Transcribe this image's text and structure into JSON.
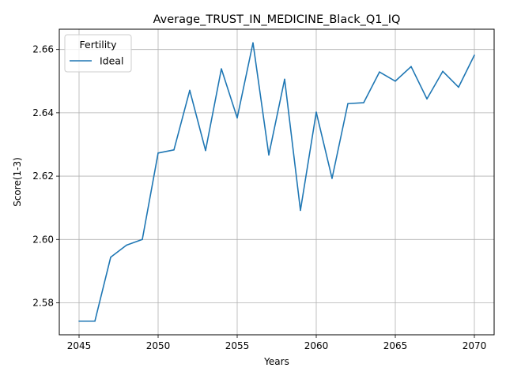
{
  "chart_data": {
    "type": "line",
    "title": "Average_TRUST_IN_MEDICINE_Black_Q1_IQ",
    "xlabel": "Years",
    "ylabel": "Score(1-3)",
    "xlim": [
      2043.75,
      2071.25
    ],
    "ylim": [
      2.5699,
      2.6664
    ],
    "grid": true,
    "legend": {
      "title": "Fertility",
      "location": "top-left"
    },
    "x_ticks": [
      2045,
      2050,
      2055,
      2060,
      2065,
      2070
    ],
    "x_tick_labels": [
      "2045",
      "2050",
      "2055",
      "2060",
      "2065",
      "2070"
    ],
    "y_ticks": [
      2.58,
      2.6,
      2.62,
      2.64,
      2.66
    ],
    "y_tick_labels": [
      "2.58",
      "2.60",
      "2.62",
      "2.64",
      "2.66"
    ],
    "series": [
      {
        "name": "Ideal",
        "color": "#1f77b4",
        "x": [
          2045,
          2046,
          2047,
          2048,
          2049,
          2050,
          2051,
          2052,
          2053,
          2054,
          2055,
          2056,
          2057,
          2058,
          2059,
          2060,
          2061,
          2062,
          2063,
          2064,
          2065,
          2066,
          2067,
          2068,
          2069,
          2070
        ],
        "values": [
          2.5742,
          2.5742,
          2.5944,
          2.5982,
          2.6,
          2.6273,
          2.6283,
          2.6471,
          2.6281,
          2.6539,
          2.6384,
          2.6621,
          2.6267,
          2.6506,
          2.6092,
          2.6402,
          2.6193,
          2.6429,
          2.6432,
          2.6529,
          2.65,
          2.6546,
          2.6444,
          2.6531,
          2.6481,
          2.6582
        ]
      }
    ]
  }
}
